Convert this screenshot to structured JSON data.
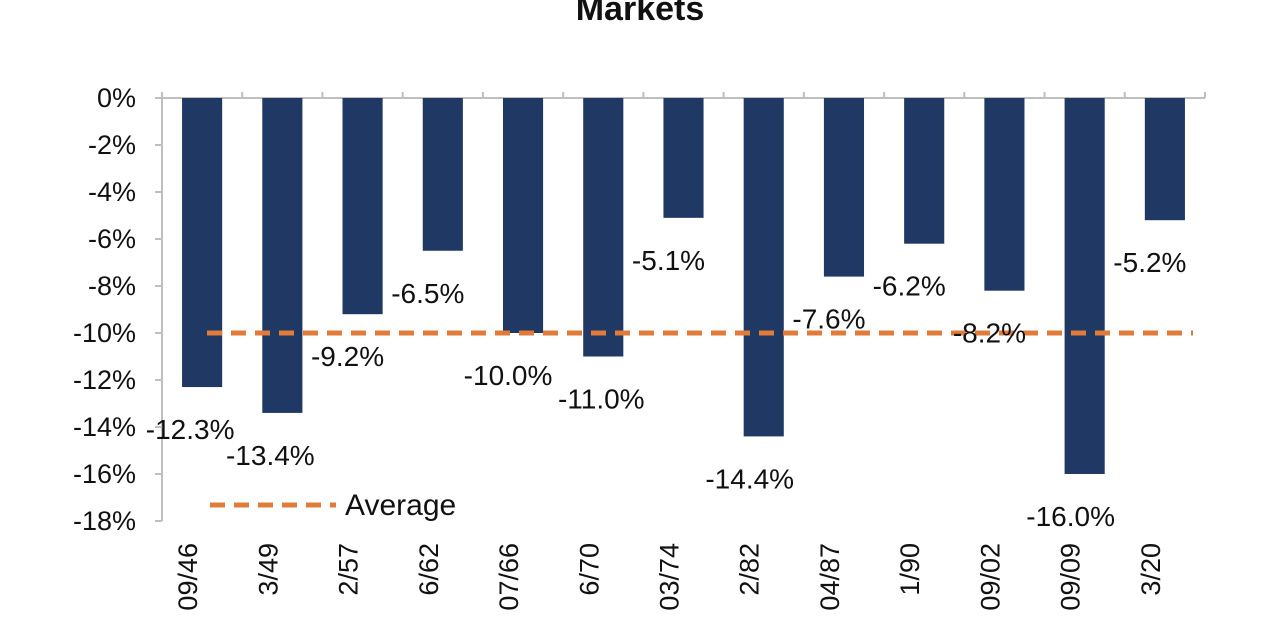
{
  "chart_data": {
    "type": "bar",
    "title": "Markets",
    "categories": [
      "09/46",
      "3/49",
      "2/57",
      "6/62",
      "07/66",
      "6/70",
      "03/74",
      "2/82",
      "04/87",
      "1/90",
      "09/02",
      "09/09",
      "3/20"
    ],
    "series": [
      {
        "values": [
          -12.3,
          -13.4,
          -9.2,
          -6.5,
          -10.0,
          -11.0,
          -5.1,
          -14.4,
          -7.6,
          -6.2,
          -8.2,
          -16.0,
          -5.2
        ]
      }
    ],
    "data_labels": [
      "-12.3%",
      "-13.4%",
      "-9.2%",
      "-6.5%",
      "-10.0%",
      "-11.0%",
      "-5.1%",
      "-14.4%",
      "-7.6%",
      "-6.2%",
      "-8.2%",
      "-16.0%",
      "-5.2%"
    ],
    "average": {
      "name": "Average",
      "value": -10.0
    },
    "yticks": [
      "0%",
      "-2%",
      "-4%",
      "-6%",
      "-8%",
      "-10%",
      "-12%",
      "-14%",
      "-16%",
      "-18%"
    ],
    "ylim": [
      -18,
      0
    ],
    "xlabel": "",
    "ylabel": "",
    "grid": false,
    "legend_position": "bottom-left",
    "colors": {
      "bar": "#1f3864",
      "average": "#e07b39",
      "axis": "#bfbfbf"
    }
  }
}
